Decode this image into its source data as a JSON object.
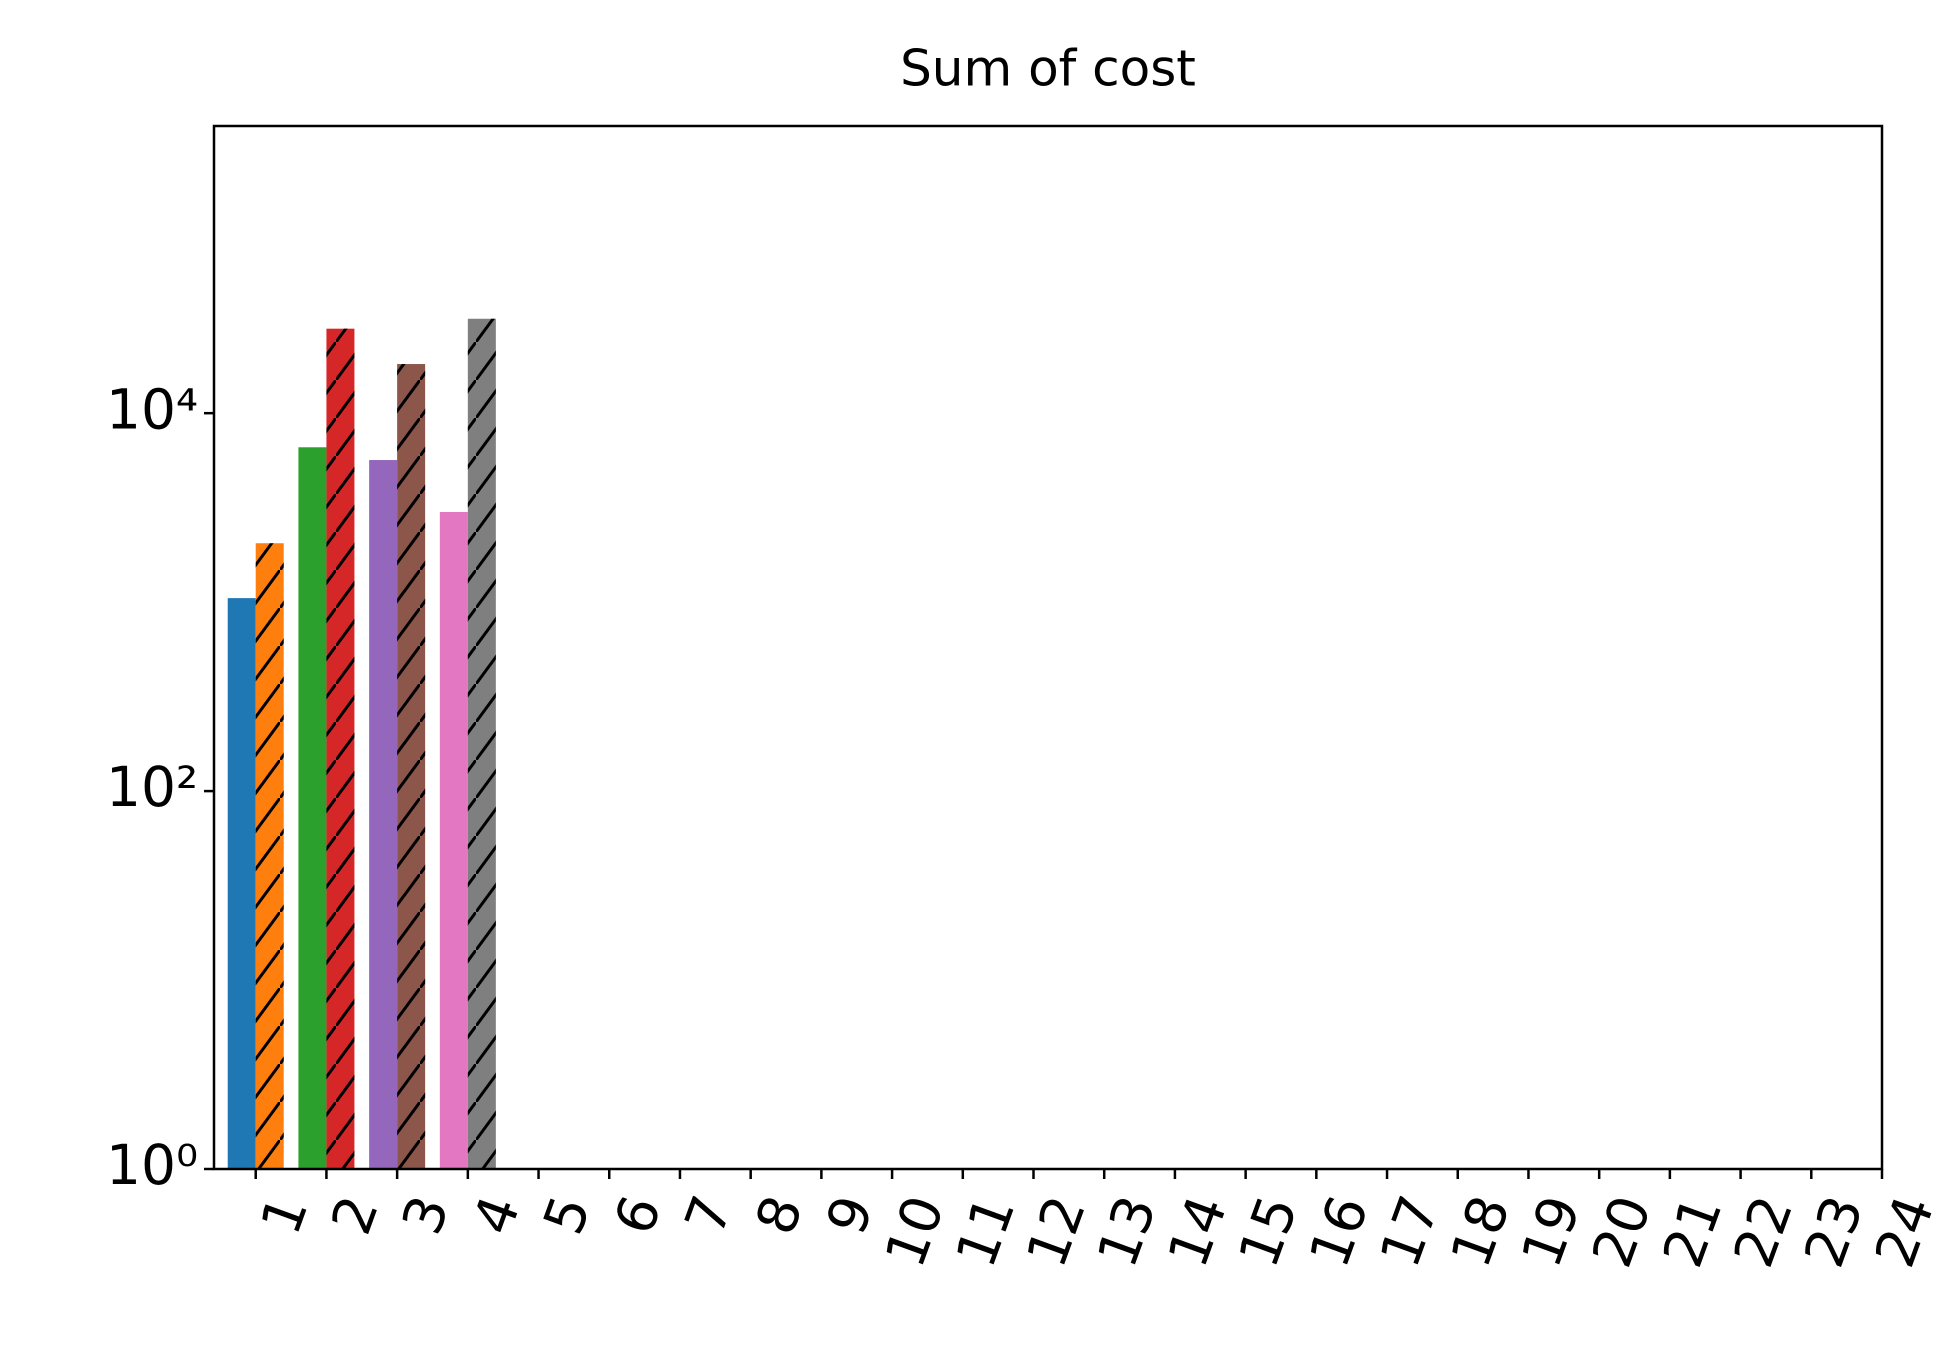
{
  "chart_data": {
    "type": "bar",
    "title": "Sum of cost",
    "categories": [
      "1",
      "2",
      "3",
      "4",
      "5",
      "6",
      "7",
      "8",
      "9",
      "10",
      "11",
      "12",
      "13",
      "14",
      "15",
      "16",
      "17",
      "18",
      "19",
      "20",
      "21",
      "22",
      "23",
      "24"
    ],
    "series": [
      {
        "colors": [
          "#1f77b4",
          "#2ca02c",
          "#9467bd",
          "#e377c2"
        ],
        "hatch": false,
        "values": [
          1050,
          6600,
          5650,
          3000,
          null,
          null,
          null,
          null,
          null,
          null,
          null,
          null,
          null,
          null,
          null,
          null,
          null,
          null,
          null,
          null,
          null,
          null,
          null,
          null
        ]
      },
      {
        "colors": [
          "#ff7f0e",
          "#d62728",
          "#8c564b",
          "#7f7f7f"
        ],
        "hatch": true,
        "values": [
          2050,
          28000,
          18200,
          31600,
          null,
          null,
          null,
          null,
          null,
          null,
          null,
          null,
          null,
          null,
          null,
          null,
          null,
          null,
          null,
          null,
          null,
          null,
          null,
          null
        ]
      }
    ],
    "log_y": true,
    "ylim": [
      1,
      331000
    ],
    "yticks": [
      {
        "value": 1,
        "label": "10⁰"
      },
      {
        "value": 100,
        "label": "10²"
      },
      {
        "value": 10000,
        "label": "10⁴"
      }
    ]
  }
}
